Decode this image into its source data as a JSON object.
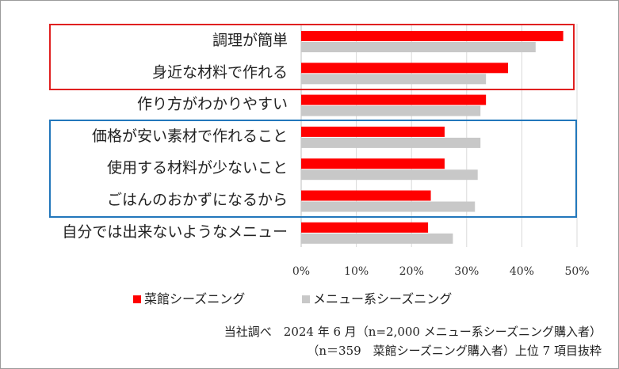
{
  "chart_data": {
    "type": "bar",
    "orientation": "horizontal",
    "categories": [
      "調理が簡単",
      "身近な材料で作れる",
      "作り方がわかりやすい",
      "価格が安い素材で作れること",
      "使用する材料が少ないこと",
      "ごはんのおかずになるから",
      "自分では出来ないようなメニュー"
    ],
    "series": [
      {
        "name": "菜館シーズニング",
        "color": "#ff0000",
        "values": [
          47.5,
          37.5,
          33.5,
          26,
          26,
          23.5,
          23
        ]
      },
      {
        "name": "メニュー系シーズニング",
        "color": "#c8c8c8",
        "values": [
          42.5,
          33.5,
          32.5,
          32.5,
          32,
          31.5,
          27.5
        ]
      }
    ],
    "xlim": [
      0,
      50
    ],
    "xticks": [
      "0%",
      "10%",
      "20%",
      "30%",
      "40%",
      "50%"
    ],
    "grid": true,
    "legend": "bottom",
    "highlight_boxes": [
      {
        "color": "#e02020",
        "rows": [
          0,
          1
        ]
      },
      {
        "color": "#2277bb",
        "rows": [
          3,
          5
        ]
      }
    ]
  },
  "source": {
    "line1": "当社調べ　2024 年 6 月（n=2,000 メニュー系シーズニング購入者）",
    "line2": "（n＝359　菜館シーズニング購入者）上位 7 項目抜粋"
  }
}
